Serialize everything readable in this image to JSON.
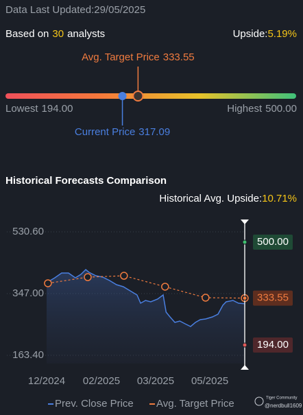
{
  "header": {
    "updated": "Data Last Updated:29/05/2025",
    "based_on": "Based on",
    "analysts_count": "30",
    "analysts": "analysts",
    "upside_label": "Upside:",
    "upside": "5.19%"
  },
  "gauge": {
    "target_label": "Avg. Target Price",
    "target": {
      "value": 333.55,
      "label": "333.55"
    },
    "low_label": "Lowest",
    "low": {
      "value": 194,
      "label": "194.00"
    },
    "high_label": "Highest",
    "high": {
      "value": 500,
      "label": "500.00"
    },
    "current_label": "Current Price",
    "current": {
      "value": 317.09,
      "label": "317.09"
    },
    "colors": [
      "#f0505a",
      "#f57a3a",
      "#e8c22a",
      "#3fc17a"
    ]
  },
  "chart_data": {
    "type": "line",
    "title": "Historical Forecasts Comparison",
    "subtitle_label": "Historical Avg. Upside:",
    "subtitle_value": "10.71%",
    "ylim": [
      118.5,
      567.3
    ],
    "yticks": [
      {
        "value": 163.4,
        "label": "163.40"
      },
      {
        "value": 347,
        "label": "347.00"
      },
      {
        "value": 530.6,
        "label": "530.60"
      }
    ],
    "xlim": [
      0,
      6.07
    ],
    "xticks": [
      {
        "value": 0,
        "label": "12/2024"
      },
      {
        "value": 1.68,
        "label": "02/2025"
      },
      {
        "value": 3.34,
        "label": "03/2025"
      },
      {
        "value": 5.0,
        "label": "05/2025"
      }
    ],
    "grid": true,
    "series": [
      {
        "name": "Prev. Close Price",
        "color": "#4a7fe0",
        "x": [
          0,
          0.25,
          0.46,
          0.67,
          0.88,
          1.05,
          1.2,
          1.3,
          1.51,
          1.72,
          1.93,
          2.14,
          2.35,
          2.56,
          2.77,
          2.88,
          3.03,
          3.19,
          3.4,
          3.57,
          3.66,
          3.78,
          3.93,
          4.08,
          4.24,
          4.41,
          4.56,
          4.71,
          4.87,
          5.08,
          5.25,
          5.4,
          5.5,
          5.71,
          5.88,
          6.07
        ],
        "values": [
          379.6,
          393.9,
          408.2,
          408.2,
          393.9,
          404.1,
          418.4,
          410.2,
          400.0,
          396.0,
          385.8,
          373.5,
          367.4,
          355.2,
          342.9,
          318.4,
          326.6,
          322.5,
          330.7,
          342.9,
          291.9,
          277.6,
          261.3,
          265.4,
          257.2,
          249.1,
          261.3,
          269.5,
          271.5,
          277.6,
          285.8,
          312.3,
          322.5,
          326.6,
          318.4,
          317.09
        ]
      },
      {
        "name": "Avg. Target Price",
        "color": "#f07b3f",
        "x": [
          0.04,
          1.26,
          2.37,
          3.63,
          4.87,
          6.07
        ],
        "values": [
          377.6,
          395.9,
          400.0,
          367.4,
          334.8,
          333.55
        ]
      }
    ],
    "end_labels": [
      {
        "value": 500,
        "label": "500.00",
        "color": "#3fbf6f",
        "box": "#1f4a35",
        "text_color": "#ffffff"
      },
      {
        "value": 333.55,
        "label": "333.55",
        "color": "#f07b3f",
        "box": "#5e2e1f",
        "text_color": "#f07b3f"
      },
      {
        "value": 194,
        "label": "194.00",
        "color": "#e05a5a",
        "box": "#4f272b",
        "text_color": "#ffffff"
      }
    ]
  },
  "watermark": {
    "brand": "Tiger Community",
    "user": "@nerdbull1609"
  }
}
